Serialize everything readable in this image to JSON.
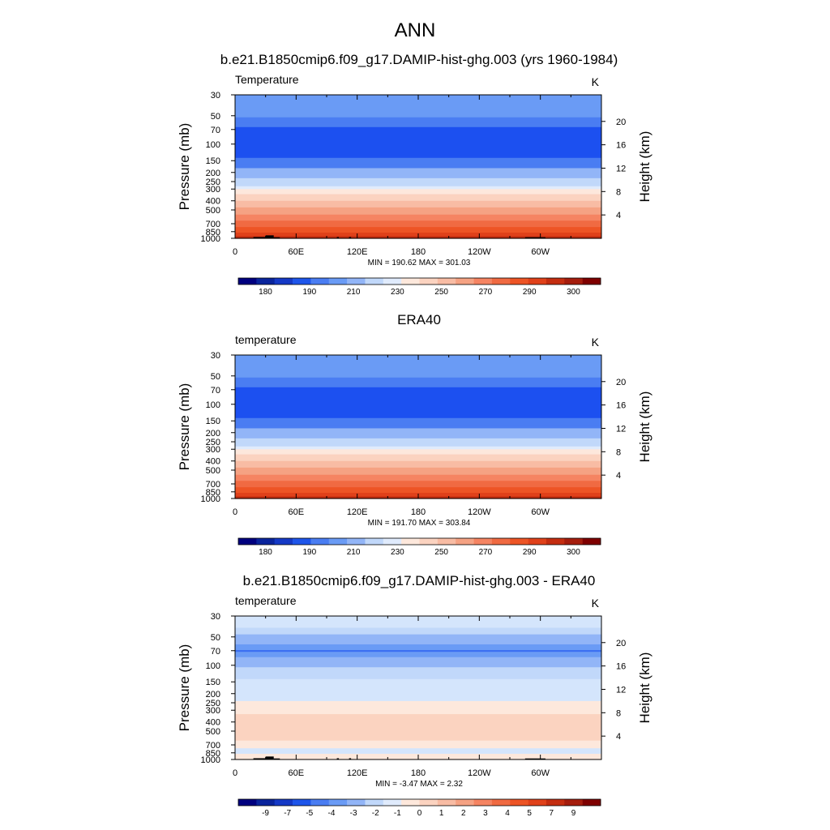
{
  "figure_title": "ANN",
  "chart_data": [
    {
      "type": "heatmap",
      "title": "b.e21.B1850cmip6.f09_g17.DAMIP-hist-ghg.003 (yrs 1960-1984)",
      "field_label": "Temperature",
      "units": "K",
      "ylabel": "Pressure (mb)",
      "ylabel_right": "Height (km)",
      "y_scale": "log-pressure",
      "ylim": [
        1000,
        30
      ],
      "pressure_ticks": [
        "30",
        "50",
        "70",
        "100",
        "150",
        "200",
        "250",
        "300",
        "400",
        "500",
        "700",
        "850",
        "1000"
      ],
      "height_ticks": [
        "4",
        "8",
        "12",
        "16",
        "20"
      ],
      "xlim": [
        0,
        360
      ],
      "x_ticks": [
        "0",
        "60E",
        "120E",
        "180",
        "120W",
        "60W"
      ],
      "stats": "MIN = 190.62  MAX = 301.03",
      "colorbar_labels": [
        "180",
        "190",
        "210",
        "230",
        "250",
        "270",
        "290",
        "300"
      ],
      "profile": [
        {
          "p": 30,
          "color": "#6a9bf5"
        },
        {
          "p": 40,
          "color": "#6a9bf5"
        },
        {
          "p": 52,
          "color": "#4a7df2"
        },
        {
          "p": 60,
          "color": "#4a7df2"
        },
        {
          "p": 66,
          "color": "#1c50f0"
        },
        {
          "p": 130,
          "color": "#1c50f0"
        },
        {
          "p": 140,
          "color": "#4a7df2"
        },
        {
          "p": 165,
          "color": "#4a7df2"
        },
        {
          "p": 180,
          "color": "#92b5f7"
        },
        {
          "p": 215,
          "color": "#92b5f7"
        },
        {
          "p": 230,
          "color": "#c1d8fa"
        },
        {
          "p": 260,
          "color": "#c1d8fa"
        },
        {
          "p": 280,
          "color": "#e0ebfc"
        },
        {
          "p": 300,
          "color": "#fde8dc"
        },
        {
          "p": 340,
          "color": "#fbd3c0"
        },
        {
          "p": 400,
          "color": "#f8bca4"
        },
        {
          "p": 470,
          "color": "#f5a283"
        },
        {
          "p": 560,
          "color": "#f58462"
        },
        {
          "p": 650,
          "color": "#f06a42"
        },
        {
          "p": 760,
          "color": "#ed5425"
        },
        {
          "p": 870,
          "color": "#e0411a"
        },
        {
          "p": 950,
          "color": "#c42d10"
        },
        {
          "p": 1000,
          "color": "#a51d0d"
        }
      ],
      "topography": [
        {
          "lon": [
            8,
            18
          ],
          "p": 990
        },
        {
          "lon": [
            18,
            30
          ],
          "p": 970
        },
        {
          "lon": [
            30,
            38
          ],
          "p": 930
        },
        {
          "lon": [
            38,
            44
          ],
          "p": 975
        },
        {
          "lon": [
            100,
            102
          ],
          "p": 970
        },
        {
          "lon": [
            112,
            114
          ],
          "p": 970
        },
        {
          "lon": [
            285,
            305
          ],
          "p": 975
        }
      ]
    },
    {
      "type": "heatmap",
      "title": "ERA40",
      "field_label": "temperature",
      "units": "K",
      "ylabel": "Pressure (mb)",
      "ylabel_right": "Height (km)",
      "y_scale": "log-pressure",
      "ylim": [
        1000,
        30
      ],
      "pressure_ticks": [
        "30",
        "50",
        "70",
        "100",
        "150",
        "200",
        "250",
        "300",
        "400",
        "500",
        "700",
        "850",
        "1000"
      ],
      "height_ticks": [
        "4",
        "8",
        "12",
        "16",
        "20"
      ],
      "xlim": [
        0,
        360
      ],
      "x_ticks": [
        "0",
        "60E",
        "120E",
        "180",
        "120W",
        "60W"
      ],
      "stats": "MIN = 191.70  MAX = 303.84",
      "colorbar_labels": [
        "180",
        "190",
        "210",
        "230",
        "250",
        "270",
        "290",
        "300"
      ],
      "profile": [
        {
          "p": 30,
          "color": "#6a9bf5"
        },
        {
          "p": 40,
          "color": "#6a9bf5"
        },
        {
          "p": 52,
          "color": "#4a7df2"
        },
        {
          "p": 60,
          "color": "#4a7df2"
        },
        {
          "p": 66,
          "color": "#1c50f0"
        },
        {
          "p": 130,
          "color": "#1c50f0"
        },
        {
          "p": 140,
          "color": "#4a7df2"
        },
        {
          "p": 165,
          "color": "#4a7df2"
        },
        {
          "p": 180,
          "color": "#92b5f7"
        },
        {
          "p": 215,
          "color": "#92b5f7"
        },
        {
          "p": 230,
          "color": "#c1d8fa"
        },
        {
          "p": 260,
          "color": "#c1d8fa"
        },
        {
          "p": 280,
          "color": "#e0ebfc"
        },
        {
          "p": 300,
          "color": "#fde8dc"
        },
        {
          "p": 340,
          "color": "#fbd3c0"
        },
        {
          "p": 400,
          "color": "#f8bca4"
        },
        {
          "p": 470,
          "color": "#f5a283"
        },
        {
          "p": 560,
          "color": "#f58462"
        },
        {
          "p": 650,
          "color": "#f06a42"
        },
        {
          "p": 760,
          "color": "#ed5425"
        },
        {
          "p": 870,
          "color": "#e0411a"
        },
        {
          "p": 950,
          "color": "#c42d10"
        },
        {
          "p": 1000,
          "color": "#a51d0d"
        }
      ],
      "topography": []
    },
    {
      "type": "heatmap",
      "title": "b.e21.B1850cmip6.f09_g17.DAMIP-hist-ghg.003 - ERA40",
      "field_label": "temperature",
      "units": "K",
      "ylabel": "Pressure (mb)",
      "ylabel_right": "Height (km)",
      "y_scale": "log-pressure",
      "ylim": [
        1000,
        30
      ],
      "pressure_ticks": [
        "30",
        "50",
        "70",
        "100",
        "150",
        "200",
        "250",
        "300",
        "400",
        "500",
        "700",
        "850",
        "1000"
      ],
      "height_ticks": [
        "4",
        "8",
        "12",
        "16",
        "20"
      ],
      "xlim": [
        0,
        360
      ],
      "x_ticks": [
        "0",
        "60E",
        "120E",
        "180",
        "120W",
        "60W"
      ],
      "stats": "MIN =  -3.47  MAX =   2.32",
      "colorbar_labels": [
        "-9",
        "-7",
        "-5",
        "-4",
        "-3",
        "-2",
        "-1",
        "0",
        "1",
        "2",
        "3",
        "4",
        "5",
        "7",
        "9"
      ],
      "profile": [
        {
          "p": 30,
          "color": "#d4e5fc"
        },
        {
          "p": 40,
          "color": "#c1d8fa"
        },
        {
          "p": 47,
          "color": "#92b5f7"
        },
        {
          "p": 60,
          "color": "#6a9bf5"
        },
        {
          "p": 69,
          "color": "#3b6ff2"
        },
        {
          "p": 72,
          "color": "#6a9bf5"
        },
        {
          "p": 82,
          "color": "#92b5f7"
        },
        {
          "p": 105,
          "color": "#c1d8fa"
        },
        {
          "p": 140,
          "color": "#d4e5fc"
        },
        {
          "p": 215,
          "color": "#d4e5fc"
        },
        {
          "p": 240,
          "color": "#fde8dc"
        },
        {
          "p": 310,
          "color": "#fde8dc"
        },
        {
          "p": 330,
          "color": "#fbd3c0"
        },
        {
          "p": 580,
          "color": "#fbd3c0"
        },
        {
          "p": 630,
          "color": "#fde8dc"
        },
        {
          "p": 740,
          "color": "#fde8dc"
        },
        {
          "p": 760,
          "color": "#d4e5fc"
        },
        {
          "p": 850,
          "color": "#d4e5fc"
        },
        {
          "p": 870,
          "color": "#fde8dc"
        },
        {
          "p": 1000,
          "color": "#fde8dc"
        }
      ],
      "topography": [
        {
          "lon": [
            8,
            18
          ],
          "p": 990
        },
        {
          "lon": [
            18,
            30
          ],
          "p": 970
        },
        {
          "lon": [
            30,
            38
          ],
          "p": 930
        },
        {
          "lon": [
            38,
            44
          ],
          "p": 975
        },
        {
          "lon": [
            100,
            102
          ],
          "p": 970
        },
        {
          "lon": [
            112,
            114
          ],
          "p": 970
        },
        {
          "lon": [
            285,
            305
          ],
          "p": 975
        }
      ]
    }
  ],
  "colorbar_colors": [
    "#00007f",
    "#0a249c",
    "#1539c6",
    "#1e55ea",
    "#4a7df2",
    "#6a9bf5",
    "#92b5f7",
    "#c1d8fa",
    "#e0ebfc",
    "#fde8dc",
    "#fbd3c0",
    "#f8bca4",
    "#f5a283",
    "#f58462",
    "#f06a42",
    "#ed5425",
    "#e0411a",
    "#c42d10",
    "#a51d0d",
    "#7f0000"
  ]
}
